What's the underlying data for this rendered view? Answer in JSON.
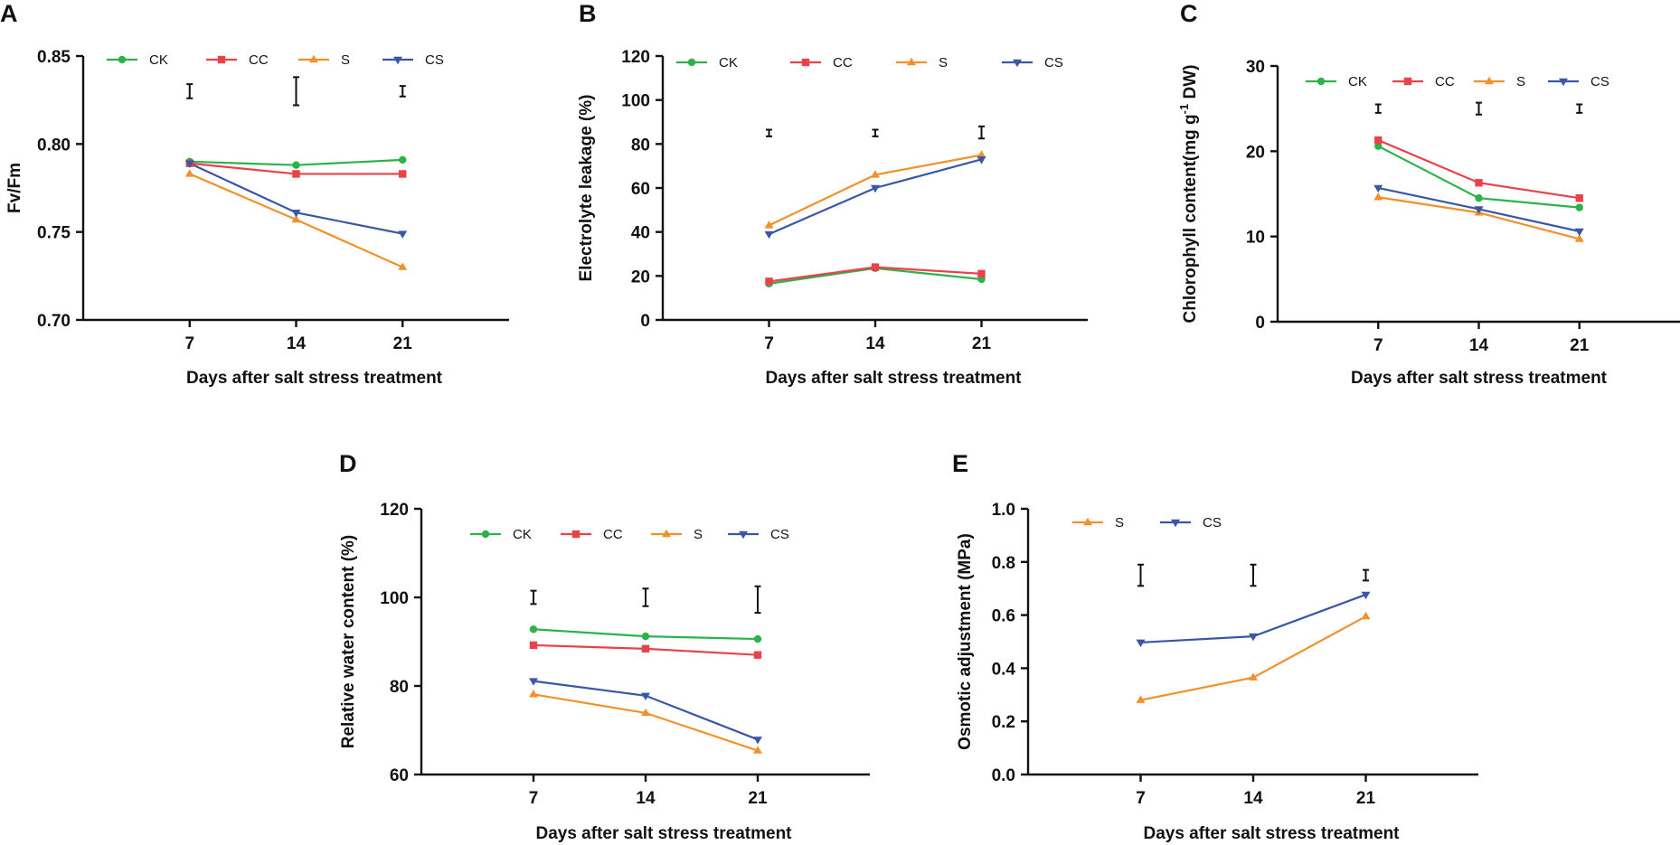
{
  "colors": {
    "CK": "#2bb34a",
    "CC": "#e8424a",
    "S": "#f2912a",
    "CS": "#3a56a5"
  },
  "markers": {
    "CK": "circle",
    "CC": "square",
    "S": "triangle-up",
    "CS": "triangle-down"
  },
  "chart_data": [
    {
      "panel": "A",
      "type": "line",
      "ylabel": "Fv/Fm",
      "xlabel": "Days after salt stress treatment",
      "x": [
        7,
        14,
        21
      ],
      "xlim": [
        0,
        28
      ],
      "ylim": [
        0.7,
        0.85
      ],
      "yticks": [
        0.7,
        0.75,
        0.8,
        0.85
      ],
      "ytick_labels": [
        "0.70",
        "0.75",
        "0.80",
        "0.85"
      ],
      "legend": [
        "CK",
        "CC",
        "S",
        "CS"
      ],
      "series": [
        {
          "name": "CK",
          "values": [
            0.79,
            0.788,
            0.791
          ]
        },
        {
          "name": "CC",
          "values": [
            0.789,
            0.783,
            0.783
          ]
        },
        {
          "name": "S",
          "values": [
            0.783,
            0.757,
            0.73
          ]
        },
        {
          "name": "CS",
          "values": [
            0.789,
            0.761,
            0.749
          ]
        }
      ],
      "error_bars": [
        {
          "x": 7,
          "low": 0.826,
          "high": 0.834
        },
        {
          "x": 14,
          "low": 0.822,
          "high": 0.838
        },
        {
          "x": 21,
          "low": 0.827,
          "high": 0.833
        }
      ]
    },
    {
      "panel": "B",
      "type": "line",
      "ylabel": "Electrolyte leakage (%)",
      "xlabel": "Days after salt stress treatment",
      "x": [
        7,
        14,
        21
      ],
      "xlim": [
        0,
        28
      ],
      "ylim": [
        0,
        120
      ],
      "yticks": [
        0,
        20,
        40,
        60,
        80,
        100,
        120
      ],
      "ytick_labels": [
        "0",
        "20",
        "40",
        "60",
        "80",
        "100",
        "120"
      ],
      "legend": [
        "CK",
        "CC",
        "S",
        "CS"
      ],
      "series": [
        {
          "name": "CK",
          "values": [
            16.5,
            23.5,
            18.5
          ]
        },
        {
          "name": "CC",
          "values": [
            17.5,
            24.0,
            21.0
          ]
        },
        {
          "name": "S",
          "values": [
            43.0,
            66.0,
            75.0
          ]
        },
        {
          "name": "CS",
          "values": [
            39.0,
            60.0,
            73.0
          ]
        }
      ],
      "error_bars": [
        {
          "x": 7,
          "low": 83.5,
          "high": 86.5
        },
        {
          "x": 14,
          "low": 83.5,
          "high": 86.5
        },
        {
          "x": 21,
          "low": 82.5,
          "high": 88.0
        }
      ]
    },
    {
      "panel": "C",
      "type": "line",
      "ylabel_pre": "Chlorophyll content(mg g",
      "ylabel_sup": "-1",
      "ylabel_post": " DW)",
      "xlabel": "Days after salt stress treatment",
      "x": [
        7,
        14,
        21
      ],
      "xlim": [
        0,
        28
      ],
      "ylim": [
        0,
        30
      ],
      "yticks": [
        0,
        10,
        20,
        30
      ],
      "ytick_labels": [
        "0",
        "10",
        "20",
        "30"
      ],
      "legend": [
        "CK",
        "CC",
        "S",
        "CS"
      ],
      "series": [
        {
          "name": "CK",
          "values": [
            20.6,
            14.5,
            13.4
          ]
        },
        {
          "name": "CC",
          "values": [
            21.3,
            16.3,
            14.5
          ]
        },
        {
          "name": "S",
          "values": [
            14.6,
            12.8,
            9.7
          ]
        },
        {
          "name": "CS",
          "values": [
            15.7,
            13.2,
            10.6
          ]
        }
      ],
      "error_bars": [
        {
          "x": 7,
          "low": 24.5,
          "high": 25.5
        },
        {
          "x": 14,
          "low": 24.3,
          "high": 25.7
        },
        {
          "x": 21,
          "low": 24.5,
          "high": 25.5
        }
      ]
    },
    {
      "panel": "D",
      "type": "line",
      "ylabel": "Relative water content (%)",
      "xlabel": "Days after salt stress treatment",
      "x": [
        7,
        14,
        21
      ],
      "xlim": [
        0,
        28
      ],
      "ylim": [
        60,
        120
      ],
      "yticks": [
        60,
        80,
        100,
        120
      ],
      "ytick_labels": [
        "60",
        "80",
        "100",
        "120"
      ],
      "legend": [
        "CK",
        "CC",
        "S",
        "CS"
      ],
      "series": [
        {
          "name": "CK",
          "values": [
            92.8,
            91.2,
            90.6
          ]
        },
        {
          "name": "CC",
          "values": [
            89.2,
            88.4,
            87.0
          ]
        },
        {
          "name": "S",
          "values": [
            78.1,
            73.9,
            65.4
          ]
        },
        {
          "name": "CS",
          "values": [
            81.1,
            77.8,
            67.9
          ]
        }
      ],
      "error_bars": [
        {
          "x": 7,
          "low": 98.5,
          "high": 101.5
        },
        {
          "x": 14,
          "low": 98.0,
          "high": 102.0
        },
        {
          "x": 21,
          "low": 96.5,
          "high": 102.5
        }
      ]
    },
    {
      "panel": "E",
      "type": "line",
      "ylabel": "Osmotic adjustment (MPa)",
      "xlabel": "Days after salt stress treatment",
      "x": [
        7,
        14,
        21
      ],
      "xlim": [
        0,
        28
      ],
      "ylim": [
        0.0,
        1.0
      ],
      "yticks": [
        0.0,
        0.2,
        0.4,
        0.6,
        0.8,
        1.0
      ],
      "ytick_labels": [
        "0.0",
        "0.2",
        "0.4",
        "0.6",
        "0.8",
        "1.0"
      ],
      "legend": [
        "S",
        "CS"
      ],
      "series": [
        {
          "name": "S",
          "values": [
            0.28,
            0.365,
            0.595
          ]
        },
        {
          "name": "CS",
          "values": [
            0.497,
            0.52,
            0.677
          ]
        }
      ],
      "error_bars": [
        {
          "x": 7,
          "low": 0.71,
          "high": 0.79
        },
        {
          "x": 14,
          "low": 0.71,
          "high": 0.79
        },
        {
          "x": 21,
          "low": 0.73,
          "high": 0.77
        }
      ]
    }
  ]
}
